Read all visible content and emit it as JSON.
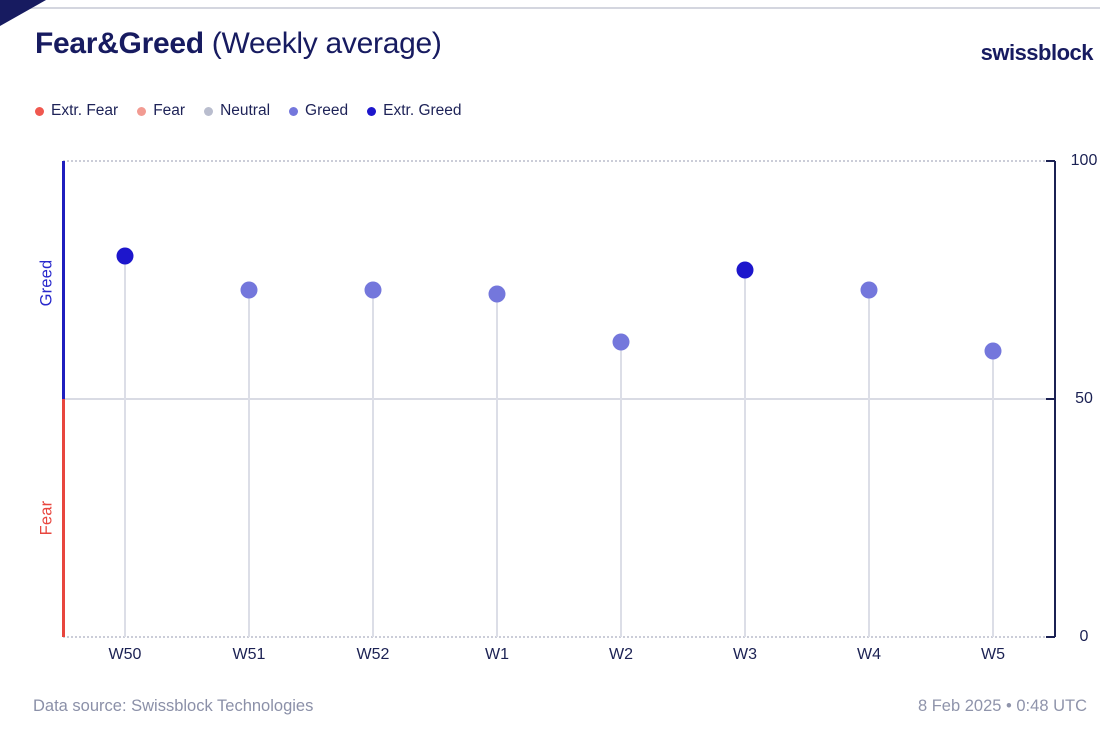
{
  "header": {
    "title_main": "Fear&Greed",
    "title_sub": "(Weekly average)",
    "brand": "swissblock"
  },
  "legend": [
    {
      "label": "Extr. Fear",
      "color": "#f0584f",
      "key": "extreme_fear"
    },
    {
      "label": "Fear",
      "color": "#f29b92",
      "key": "fear"
    },
    {
      "label": "Neutral",
      "color": "#b9bdce",
      "key": "neutral"
    },
    {
      "label": "Greed",
      "color": "#7477dc",
      "key": "greed"
    },
    {
      "label": "Extr. Greed",
      "color": "#1d16cc",
      "key": "extreme_greed"
    }
  ],
  "chart_data": {
    "type": "scatter",
    "style": "lollipop",
    "title": "Fear&Greed (Weekly average)",
    "categories": [
      "W50",
      "W51",
      "W52",
      "W1",
      "W2",
      "W3",
      "W4",
      "W5"
    ],
    "values": [
      80,
      73,
      73,
      72,
      62,
      77,
      73,
      60
    ],
    "point_classes": [
      "extreme_greed",
      "greed",
      "greed",
      "greed",
      "greed",
      "extreme_greed",
      "greed",
      "greed"
    ],
    "point_colors": {
      "extreme_fear": "#f0584f",
      "fear": "#f29b92",
      "neutral": "#b9bdce",
      "greed": "#7477dc",
      "extreme_greed": "#1d16cc"
    },
    "ylim": [
      0,
      100
    ],
    "yticks": [
      0,
      50,
      100
    ],
    "ytick_labels": [
      "0",
      "50",
      "100"
    ],
    "left_axis_labels": {
      "upper": "Greed",
      "lower": "Fear"
    },
    "left_axis_colors": {
      "upper": "#1f1fbe",
      "lower": "#e8463e"
    },
    "grid": "dotted lines at 0 and 100, solid line at 50",
    "legend_position": "top-left"
  },
  "footer": {
    "source": "Data source: Swissblock Technologies",
    "timestamp": "8 Feb 2025 • 0:48 UTC"
  }
}
